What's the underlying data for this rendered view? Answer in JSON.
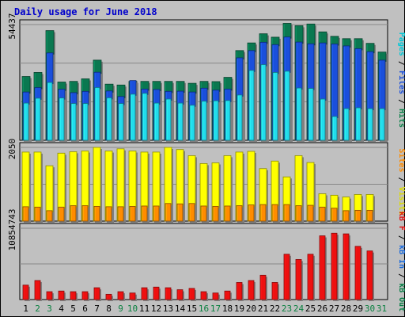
{
  "chart_data": {
    "type": "bar",
    "title": "Daily usage for June 2018",
    "days": [
      "1",
      "2",
      "3",
      "4",
      "5",
      "6",
      "7",
      "8",
      "9",
      "10",
      "11",
      "12",
      "13",
      "14",
      "15",
      "16",
      "17",
      "18",
      "19",
      "20",
      "21",
      "22",
      "23",
      "24",
      "25",
      "26",
      "27",
      "28",
      "29",
      "30",
      "31"
    ],
    "weekend_days": [
      "2",
      "3",
      "9",
      "10",
      "16",
      "17",
      "23",
      "24",
      "30",
      "31"
    ],
    "panels": [
      {
        "id": "top",
        "ytick": "54437",
        "max": 54437,
        "legend": [
          {
            "text": "Pages",
            "color": "#00c8d8"
          },
          {
            "text": " / ",
            "color": "#000000"
          },
          {
            "text": "Files",
            "color": "#1a4fdc"
          },
          {
            "text": " / ",
            "color": "#000000"
          },
          {
            "text": "Hits",
            "color": "#0a8048"
          }
        ],
        "series": [
          {
            "name": "Hits",
            "color": "#0a7850",
            "values": [
              30000,
              31900,
              51600,
              27400,
              27700,
              28900,
              37700,
              26400,
              26000,
              27700,
              27700,
              27700,
              27700,
              27700,
              26800,
              27700,
              27600,
              29600,
              42200,
              45800,
              50100,
              48500,
              55000,
              53900,
              54700,
              51000,
              48900,
              47800,
              47800,
              45600,
              41500
            ]
          },
          {
            "name": "Files",
            "color": "#1a4fdc",
            "values": [
              22700,
              24800,
              41100,
              24000,
              22400,
              23000,
              32000,
              23200,
              20600,
              28100,
              24100,
              23900,
              23000,
              23100,
              22700,
              24500,
              23600,
              24100,
              38800,
              42200,
              46100,
              45000,
              48600,
              46200,
              45400,
              45800,
              45300,
              44400,
              43100,
              41700,
              37700
            ]
          },
          {
            "name": "Pages",
            "color": "#22dcec",
            "values": [
              17500,
              19800,
              27200,
              19900,
              17300,
              17300,
              24800,
              20000,
              17300,
              21700,
              22100,
              17500,
              19400,
              17500,
              16500,
              18400,
              18600,
              18700,
              21300,
              32900,
              35600,
              31900,
              32500,
              24600,
              24400,
              19400,
              11200,
              14900,
              15300,
              14900,
              14900
            ]
          }
        ]
      },
      {
        "id": "middle",
        "ytick": "2050",
        "max": 2050,
        "legend": [
          {
            "text": "Sites",
            "color": "#ff8c00"
          },
          {
            "text": " / ",
            "color": "#000000"
          },
          {
            "text": "Visits",
            "color": "#dddd00"
          }
        ],
        "series": [
          {
            "name": "Visits",
            "color": "#ffff00",
            "values": [
              1920,
              1920,
              1540,
              1890,
              1930,
              1950,
              2050,
              1950,
              2010,
              1950,
              1920,
              1920,
              2050,
              1990,
              1820,
              1600,
              1620,
              1820,
              1920,
              1940,
              1460,
              1670,
              1230,
              1820,
              1630,
              760,
              720,
              670,
              740,
              740,
              0
            ]
          },
          {
            "name": "Sites",
            "color": "#ff8c00",
            "values": [
              400,
              390,
              290,
              390,
              430,
              430,
              410,
              400,
              400,
              410,
              420,
              420,
              490,
              480,
              490,
              420,
              410,
              420,
              430,
              450,
              460,
              460,
              460,
              430,
              440,
              390,
              360,
              290,
              300,
              300,
              0
            ]
          }
        ]
      },
      {
        "id": "bottom",
        "ytick": "10854743",
        "max": 10854743,
        "legend": [
          {
            "text": "kB F",
            "color": "#e01010"
          },
          {
            "text": " / ",
            "color": "#000000"
          },
          {
            "text": "kB In",
            "color": "#1a6adc"
          },
          {
            "text": " / ",
            "color": "#000000"
          },
          {
            "text": "kB Out",
            "color": "#0a8048"
          }
        ],
        "series": [
          {
            "name": "kB F",
            "color": "#ee1010",
            "values": [
              2200000,
              2900000,
              1200000,
              1300000,
              1200000,
              1200000,
              1800000,
              800000,
              1200000,
              1000000,
              1800000,
              1900000,
              1800000,
              1500000,
              1700000,
              1200000,
              1000000,
              1300000,
              2600000,
              2900000,
              3700000,
              2600000,
              6900000,
              6100000,
              6900000,
              9700000,
              10100000,
              10000000,
              8100000,
              7400000,
              0
            ]
          }
        ]
      }
    ]
  }
}
